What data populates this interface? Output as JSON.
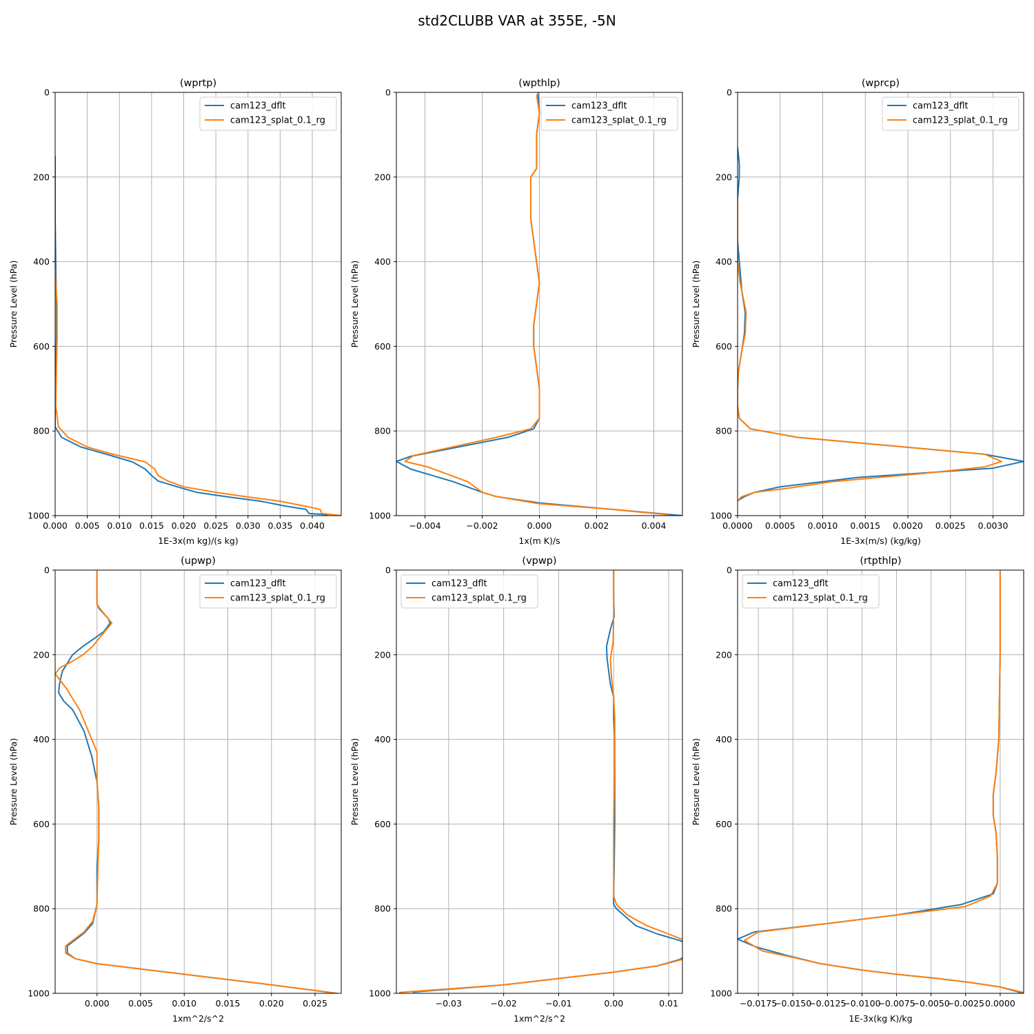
{
  "figure_title": "std2CLUBB VAR at 355E, -5N",
  "colors": {
    "cam123_dflt": "#1f77b4",
    "cam123_splat_0.1_rg": "#ff7f0e"
  },
  "chart_data": [
    {
      "type": "line",
      "title": "(wprtp)",
      "xlabel": "1E-3x(m kg)/(s kg)",
      "ylabel": "Pressure Level (hPa)",
      "xlim": [
        0.0,
        0.0445
      ],
      "ylim": [
        1000,
        0
      ],
      "y_inverted": true,
      "xticks": [
        0.0,
        0.005,
        0.01,
        0.015,
        0.02,
        0.025,
        0.03,
        0.035,
        0.04
      ],
      "xtick_labels": [
        "0.000",
        "0.005",
        "0.010",
        "0.015",
        "0.020",
        "0.025",
        "0.030",
        "0.035",
        "0.040"
      ],
      "yticks": [
        0,
        200,
        400,
        600,
        800,
        1000
      ],
      "ytick_labels": [
        "0",
        "200",
        "400",
        "600",
        "800",
        "1000"
      ],
      "grid": true,
      "legend_loc": "upper right",
      "series": [
        {
          "name": "cam123_dflt",
          "color": "#1f77b4",
          "x": [
            0.0,
            0.0,
            0.0,
            0.0001,
            0.0002,
            0.0002,
            0.0001,
            0.0,
            0.0,
            0.001,
            0.004,
            0.008,
            0.012,
            0.014,
            0.015,
            0.016,
            0.019,
            0.022,
            0.027,
            0.032,
            0.036,
            0.039,
            0.0395,
            0.0425
          ],
          "y": [
            150,
            200,
            300,
            400,
            500,
            580,
            650,
            740,
            790,
            815,
            838,
            855,
            873,
            890,
            905,
            918,
            932,
            945,
            956,
            966,
            978,
            985,
            995,
            998
          ]
        },
        {
          "name": "cam123_splat_0.1_rg",
          "color": "#ff7f0e",
          "x": [
            0.0,
            0.0001,
            0.0003,
            0.0003,
            0.0002,
            0.0001,
            0.0005,
            0.002,
            0.005,
            0.009,
            0.014,
            0.0155,
            0.016,
            0.0175,
            0.02,
            0.025,
            0.03,
            0.035,
            0.039,
            0.0412,
            0.0415,
            0.0445
          ],
          "y": [
            400,
            450,
            500,
            580,
            650,
            740,
            790,
            815,
            838,
            855,
            873,
            890,
            905,
            918,
            932,
            945,
            956,
            966,
            978,
            985,
            995,
            1000
          ]
        }
      ]
    },
    {
      "type": "line",
      "title": "(wpthlp)",
      "xlabel": "1x(m K)/s",
      "ylabel": "Pressure Level (hPa)",
      "xlim": [
        -0.005,
        0.005
      ],
      "ylim": [
        1000,
        0
      ],
      "y_inverted": true,
      "xticks": [
        -0.004,
        -0.002,
        0.0,
        0.002,
        0.004
      ],
      "xtick_labels": [
        "−0.004",
        "−0.002",
        "0.000",
        "0.002",
        "0.004"
      ],
      "yticks": [
        0,
        200,
        400,
        600,
        800,
        1000
      ],
      "ytick_labels": [
        "0",
        "200",
        "400",
        "600",
        "800",
        "1000"
      ],
      "grid": true,
      "legend_loc": "upper right",
      "series": [
        {
          "name": "cam123_dflt",
          "color": "#1f77b4",
          "x": [
            -5e-05,
            0.0,
            -0.0001,
            -0.0001,
            -0.0001,
            -0.0003,
            -0.0003,
            -0.0003,
            -0.0002,
            -0.0001,
            0.0,
            -0.0001,
            -0.0002,
            -0.0002,
            -0.0001,
            0.0,
            0.0,
            -0.0002,
            -0.0011,
            -0.0045,
            -0.005,
            -0.0045,
            -0.003,
            -0.002,
            -0.0015,
            0.0,
            0.0025,
            0.005
          ],
          "y": [
            0,
            50,
            100,
            130,
            180,
            200,
            240,
            300,
            350,
            400,
            450,
            500,
            550,
            600,
            650,
            700,
            770,
            795,
            815,
            860,
            872,
            890,
            920,
            945,
            955,
            970,
            985,
            1000
          ]
        },
        {
          "name": "cam123_splat_0.1_rg",
          "color": "#ff7f0e",
          "x": [
            -0.0001,
            0.0,
            -0.0001,
            -0.0001,
            -0.0001,
            -0.0003,
            -0.0003,
            -0.0003,
            -0.0002,
            -0.0001,
            0.0,
            -0.0001,
            -0.0002,
            -0.0002,
            -0.0001,
            0.0,
            0.0,
            -0.0003,
            -0.0015,
            -0.0044,
            -0.0047,
            -0.0039,
            -0.0031,
            -0.0025,
            -0.002,
            -0.0015,
            0.0,
            0.0025,
            0.0045
          ],
          "y": [
            5,
            50,
            100,
            130,
            180,
            200,
            240,
            300,
            350,
            400,
            450,
            500,
            550,
            600,
            650,
            700,
            770,
            795,
            815,
            858,
            872,
            885,
            905,
            920,
            945,
            955,
            972,
            985,
            998
          ]
        }
      ]
    },
    {
      "type": "line",
      "title": "(wprcp)",
      "xlabel": "1E-3x(m/s) (kg/kg)",
      "ylabel": "Pressure Level (hPa)",
      "xlim": [
        0.0,
        0.00336
      ],
      "ylim": [
        1000,
        0
      ],
      "y_inverted": true,
      "xticks": [
        0.0,
        0.0005,
        0.001,
        0.0015,
        0.002,
        0.0025,
        0.003
      ],
      "xtick_labels": [
        "0.0000",
        "0.0005",
        "0.0010",
        "0.0015",
        "0.0020",
        "0.0025",
        "0.0030"
      ],
      "yticks": [
        0,
        200,
        400,
        600,
        800,
        1000
      ],
      "ytick_labels": [
        "0",
        "200",
        "400",
        "600",
        "800",
        "1000"
      ],
      "grid": true,
      "legend_loc": "upper right",
      "series": [
        {
          "name": "cam123_dflt",
          "color": "#1f77b4",
          "x": [
            0.0,
            2e-05,
            2e-05,
            0.0,
            0.0,
            2e-05,
            5e-05,
            9e-05,
            8e-05,
            5e-05,
            1e-05,
            0.0,
            0.0,
            2e-05,
            0.00015,
            0.0007,
            0.0029,
            0.00336,
            0.003,
            0.0014,
            0.0005,
            0.0002,
            8e-05,
            0.0
          ],
          "y": [
            130,
            170,
            200,
            250,
            350,
            400,
            470,
            520,
            570,
            610,
            660,
            700,
            740,
            770,
            795,
            815,
            855,
            872,
            888,
            910,
            932,
            945,
            955,
            965
          ]
        },
        {
          "name": "cam123_splat_0.1_rg",
          "color": "#ff7f0e",
          "x": [
            0.0,
            0.0,
            0.0,
            3e-05,
            5e-05,
            0.0001,
            9e-05,
            5e-05,
            1e-05,
            0.0,
            0.0,
            2e-05,
            0.00015,
            0.0007,
            0.0029,
            0.0031,
            0.0029,
            0.0022,
            0.0011,
            0.0006,
            0.0002,
            5e-05,
            0.0
          ],
          "y": [
            250,
            350,
            400,
            450,
            470,
            520,
            570,
            610,
            660,
            700,
            740,
            770,
            795,
            815,
            855,
            872,
            885,
            900,
            920,
            935,
            945,
            955,
            965
          ]
        }
      ]
    },
    {
      "type": "line",
      "title": "(upwp)",
      "xlabel": "1xm^2/s^2",
      "ylabel": "Pressure Level (hPa)",
      "xlim": [
        -0.0048,
        0.028
      ],
      "ylim": [
        1000,
        0
      ],
      "y_inverted": true,
      "xticks": [
        0.0,
        0.005,
        0.01,
        0.015,
        0.02,
        0.025
      ],
      "xtick_labels": [
        "0.000",
        "0.005",
        "0.010",
        "0.015",
        "0.020",
        "0.025"
      ],
      "yticks": [
        0,
        200,
        400,
        600,
        800,
        1000
      ],
      "ytick_labels": [
        "0",
        "200",
        "400",
        "600",
        "800",
        "1000"
      ],
      "grid": true,
      "legend_loc": "upper right",
      "series": [
        {
          "name": "cam123_dflt",
          "color": "#1f77b4",
          "x": [
            0.0,
            0.0,
            0.0002,
            0.0013,
            0.0015,
            0.0008,
            -0.0002,
            -0.0016,
            -0.0028,
            -0.004,
            -0.0043,
            -0.0044,
            -0.0038,
            -0.0028,
            -0.0015,
            -0.0006,
            0.0,
            0.0002,
            0.0002,
            0.0,
            0.0,
            0.0,
            -0.0005,
            -0.0015,
            -0.0034,
            -0.0034,
            -0.0025,
            0.0,
            0.01,
            0.02,
            0.0275
          ],
          "y": [
            0,
            80,
            90,
            115,
            125,
            145,
            160,
            180,
            200,
            240,
            270,
            290,
            310,
            330,
            380,
            440,
            500,
            560,
            640,
            700,
            760,
            790,
            835,
            858,
            888,
            905,
            918,
            930,
            955,
            980,
            1000
          ]
        },
        {
          "name": "cam123_splat_0.1_rg",
          "color": "#ff7f0e",
          "x": [
            0.0,
            0.0,
            0.0003,
            0.0017,
            0.0009,
            -0.0005,
            -0.0016,
            -0.0032,
            -0.0042,
            -0.0048,
            -0.0035,
            -0.002,
            0.0,
            0.0,
            0.0002,
            0.0002,
            0.0001,
            0.0,
            -0.0005,
            -0.0015,
            -0.0036,
            -0.0036,
            -0.0025,
            0.0,
            0.01,
            0.02,
            0.0275
          ],
          "y": [
            0,
            80,
            90,
            125,
            145,
            180,
            200,
            220,
            230,
            245,
            280,
            330,
            430,
            500,
            560,
            640,
            700,
            790,
            830,
            855,
            888,
            905,
            918,
            930,
            955,
            980,
            1000
          ]
        }
      ]
    },
    {
      "type": "line",
      "title": "(vpwp)",
      "xlabel": "1xm^2/s^2",
      "ylabel": "Pressure Level (hPa)",
      "xlim": [
        -0.0395,
        0.0125
      ],
      "ylim": [
        1000,
        0
      ],
      "y_inverted": true,
      "xticks": [
        -0.03,
        -0.02,
        -0.01,
        0.0,
        0.01
      ],
      "xtick_labels": [
        "−0.03",
        "−0.02",
        "−0.01",
        "0.00",
        "0.01"
      ],
      "yticks": [
        0,
        200,
        400,
        600,
        800,
        1000
      ],
      "ytick_labels": [
        "0",
        "200",
        "400",
        "600",
        "800",
        "1000"
      ],
      "grid": true,
      "legend_loc": "upper left",
      "series": [
        {
          "name": "cam123_dflt",
          "color": "#1f77b4",
          "x": [
            0.0,
            0.0,
            0.0001,
            -0.0006,
            -0.0013,
            -0.0012,
            -0.0008,
            -0.0006,
            0.0,
            0.0,
            0.0002,
            0.0002,
            0.0002,
            0.0001,
            0.0,
            0.0,
            0.0005,
            0.0018,
            0.004,
            0.008,
            0.012,
            0.0145,
            0.014,
            0.012,
            0.008,
            0.0,
            -0.01,
            -0.02,
            -0.0365
          ],
          "y": [
            0,
            60,
            110,
            140,
            180,
            210,
            250,
            270,
            300,
            350,
            400,
            500,
            600,
            700,
            770,
            790,
            800,
            815,
            840,
            860,
            875,
            890,
            905,
            920,
            935,
            950,
            965,
            980,
            997
          ]
        },
        {
          "name": "cam123_splat_0.1_rg",
          "color": "#ff7f0e",
          "x": [
            0.0,
            0.0,
            0.0,
            -0.0001,
            -0.0006,
            -0.0004,
            -0.0002,
            0.0,
            0.0002,
            0.0002,
            0.0001,
            0.0,
            0.0,
            0.0005,
            0.0025,
            0.006,
            0.01,
            0.013,
            0.0155,
            0.0165,
            0.0152,
            0.0125,
            0.008,
            0.0,
            -0.01,
            -0.02,
            -0.039
          ],
          "y": [
            0,
            60,
            110,
            170,
            210,
            250,
            280,
            300,
            350,
            400,
            500,
            600,
            770,
            790,
            815,
            840,
            860,
            875,
            888,
            900,
            910,
            920,
            935,
            950,
            965,
            980,
            998
          ]
        }
      ]
    },
    {
      "type": "line",
      "title": "(rtpthlp)",
      "xlabel": "1E-3x(kg K)/kg",
      "ylabel": "Pressure Level (hPa)",
      "xlim": [
        -0.019,
        0.0017
      ],
      "ylim": [
        1000,
        0
      ],
      "y_inverted": true,
      "xticks": [
        -0.0175,
        -0.015,
        -0.0125,
        -0.01,
        -0.0075,
        -0.005,
        -0.0025,
        0.0
      ],
      "xtick_labels": [
        "−0.0175",
        "−0.0150",
        "−0.0125",
        "−0.0100",
        "−0.0075",
        "−0.0050",
        "−0.0025",
        "0.0000"
      ],
      "yticks": [
        0,
        200,
        400,
        600,
        800,
        1000
      ],
      "ytick_labels": [
        "0",
        "200",
        "400",
        "600",
        "800",
        "1000"
      ],
      "grid": true,
      "legend_loc": "upper left",
      "series": [
        {
          "name": "cam123_dflt",
          "color": "#1f77b4",
          "x": [
            0.0,
            0.0,
            -0.0001,
            -0.0003,
            -0.0005,
            -0.0005,
            -0.0003,
            -0.0002,
            -0.0002,
            -0.0005,
            -0.0028,
            -0.0075,
            -0.0125,
            -0.0178,
            -0.019,
            -0.0177,
            -0.0155,
            -0.013,
            -0.01,
            -0.0075,
            -0.0045,
            -0.002,
            0.0,
            0.0017
          ],
          "y": [
            0,
            200,
            400,
            480,
            530,
            580,
            620,
            680,
            740,
            765,
            790,
            815,
            835,
            855,
            872,
            890,
            910,
            930,
            945,
            955,
            965,
            975,
            985,
            1000
          ]
        },
        {
          "name": "cam123_splat_0.1_rg",
          "color": "#ff7f0e",
          "x": [
            0.0,
            0.0,
            -0.0001,
            -0.0003,
            -0.0005,
            -0.0005,
            -0.0003,
            -0.0002,
            -0.0002,
            -0.0007,
            -0.0025,
            -0.0075,
            -0.0125,
            -0.0175,
            -0.0185,
            -0.0172,
            -0.015,
            -0.013,
            -0.01,
            -0.0075,
            -0.0045,
            -0.002,
            0.0,
            0.0017
          ],
          "y": [
            0,
            200,
            400,
            480,
            530,
            580,
            620,
            680,
            740,
            770,
            795,
            815,
            835,
            855,
            875,
            900,
            915,
            930,
            945,
            955,
            965,
            975,
            985,
            998
          ]
        }
      ]
    }
  ]
}
